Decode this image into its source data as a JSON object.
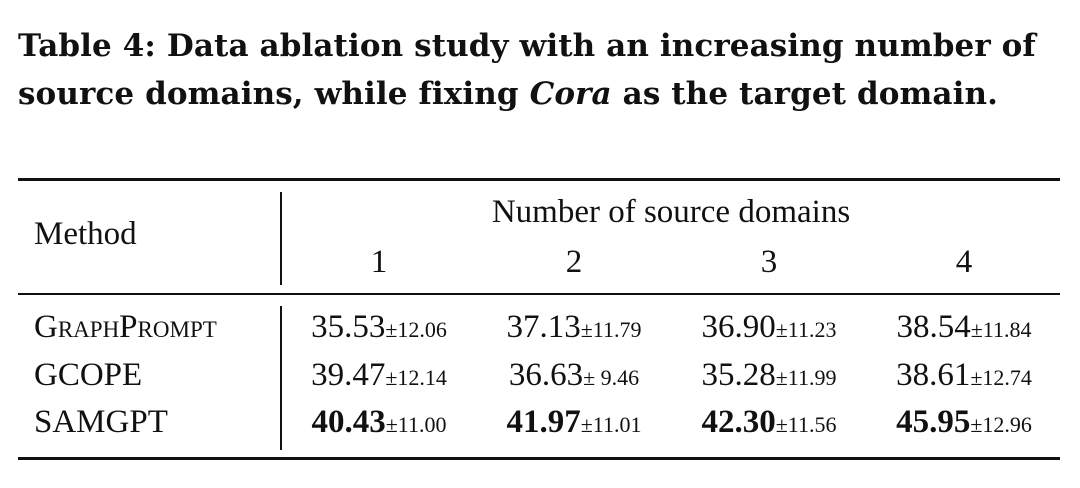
{
  "caption": {
    "line1": "Table 4: Data ablation study with an increasing number of",
    "line2_pre": "source domains, while fixing ",
    "line2_em": "Cora",
    "line2_post": " as the target domain."
  },
  "table": {
    "method_header": "Method",
    "group_header": "Number of source domains",
    "columns": [
      "1",
      "2",
      "3",
      "4"
    ],
    "rows": [
      {
        "method": "GraphPrompt",
        "cells": [
          {
            "mean": "35.53",
            "std": "±12.06"
          },
          {
            "mean": "37.13",
            "std": "±11.79"
          },
          {
            "mean": "36.90",
            "std": "±11.23"
          },
          {
            "mean": "38.54",
            "std": "±11.84"
          }
        ]
      },
      {
        "method": "GCOPE",
        "cells": [
          {
            "mean": "39.47",
            "std": "±12.14"
          },
          {
            "mean": "36.63",
            "std": "± 9.46"
          },
          {
            "mean": "35.28",
            "std": "±11.99"
          },
          {
            "mean": "38.61",
            "std": "±12.74"
          }
        ]
      },
      {
        "method": "SAMGPT",
        "bold": true,
        "cells": [
          {
            "mean": "40.43",
            "std": "±11.00"
          },
          {
            "mean": "41.97",
            "std": "±11.01"
          },
          {
            "mean": "42.30",
            "std": "±11.56"
          },
          {
            "mean": "45.95",
            "std": "±12.96"
          }
        ]
      }
    ]
  }
}
